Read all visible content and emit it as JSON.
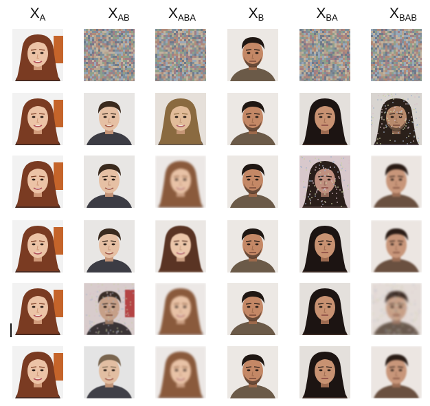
{
  "columns": [
    {
      "key": "xa",
      "base": "X",
      "sub": "A"
    },
    {
      "key": "xab",
      "base": "X",
      "sub": "AB"
    },
    {
      "key": "xaba",
      "base": "X",
      "sub": "ABA"
    },
    {
      "key": "xb",
      "base": "X",
      "sub": "B"
    },
    {
      "key": "xba",
      "base": "X",
      "sub": "BA"
    },
    {
      "key": "xbab",
      "base": "X",
      "sub": "BAB"
    }
  ],
  "grid": [
    [
      "woman-red-hair",
      "noise",
      "noise",
      "man-dark-hair",
      "noise",
      "noise"
    ],
    [
      "woman-red-hair",
      "smiling-man",
      "blonde-woman",
      "man-dark-hair",
      "dark-haired-woman",
      "long-haired-man"
    ],
    [
      "woman-red-hair",
      "smiling-man",
      "blurry-woman",
      "man-dark-hair",
      "noisy-woman",
      "blurry-man"
    ],
    [
      "woman-red-hair",
      "smiling-man",
      "brunette-woman",
      "man-dark-hair",
      "dark-haired-woman",
      "blurry-man"
    ],
    [
      "woman-red-hair",
      "distorted-man",
      "blurry-woman",
      "man-dark-hair",
      "dark-haired-woman",
      "pixelated-man"
    ],
    [
      "woman-red-hair",
      "blond-man",
      "blurry-woman",
      "man-dark-hair",
      "dark-haired-woman",
      "blurry-man"
    ]
  ],
  "colors": {
    "text": "#111111",
    "background": "#ffffff"
  }
}
